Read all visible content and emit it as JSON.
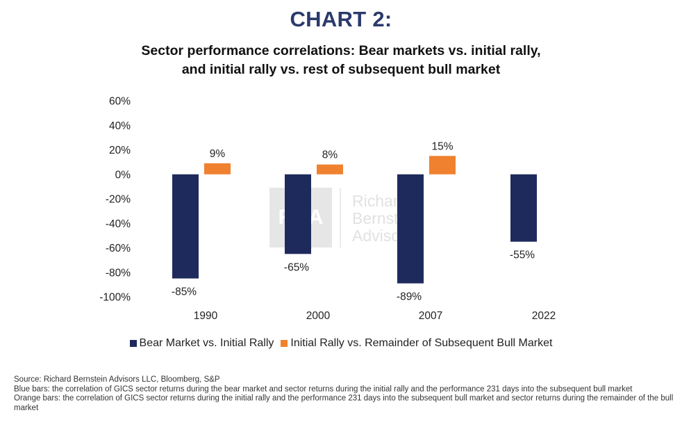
{
  "header": {
    "chart_label": "CHART 2:",
    "title_line1": "Sector performance correlations: Bear markets vs. initial rally,",
    "title_line2": "and initial rally vs. rest of subsequent bull market"
  },
  "colors": {
    "blue": "#1f2a5c",
    "orange": "#f0812e",
    "label_navy": "#2b3a6b"
  },
  "chart_data": {
    "type": "bar",
    "title": "Sector performance correlations: Bear markets vs. initial rally, and initial rally vs. rest of subsequent bull market",
    "xlabel": "",
    "ylabel": "",
    "categories": [
      "1990",
      "2000",
      "2007",
      "2022"
    ],
    "series": [
      {
        "name": "Bear Market vs. Initial Rally",
        "color": "#1f2a5c",
        "values": [
          -85,
          -65,
          -89,
          -55
        ],
        "labels": [
          "-85%",
          "-65%",
          "-89%",
          "-55%"
        ]
      },
      {
        "name": "Initial Rally vs. Remainder of Subsequent Bull Market",
        "color": "#f0812e",
        "values": [
          9,
          8,
          15,
          null
        ],
        "labels": [
          "9%",
          "8%",
          "15%",
          ""
        ]
      }
    ],
    "ylim": [
      -100,
      60
    ],
    "yticks": [
      60,
      40,
      20,
      0,
      -20,
      -40,
      -60,
      -80,
      -100
    ],
    "ytick_labels": [
      "60%",
      "40%",
      "20%",
      "0%",
      "-20%",
      "-40%",
      "-60%",
      "-80%",
      "-100%"
    ],
    "grid": false,
    "legend_position": "bottom"
  },
  "watermark": {
    "monogram": "RBA",
    "line1": "Richard",
    "line2": "Bernstein",
    "line3": "Advisors"
  },
  "legend": {
    "blue_label": "Bear Market vs. Initial Rally",
    "orange_label": "Initial Rally vs. Remainder of Subsequent Bull Market"
  },
  "notes": {
    "source": "Source: Richard Bernstein Advisors LLC, Bloomberg, S&P",
    "blue_note": "Blue bars: the correlation of GICS sector returns during the bear market and sector returns during the initial rally and the performance 231 days into the subsequent bull market",
    "orange_note": "Orange bars: the correlation of GICS sector returns during the initial rally and the performance 231 days into the subsequent bull market and sector returns during the remainder of the bull market"
  }
}
